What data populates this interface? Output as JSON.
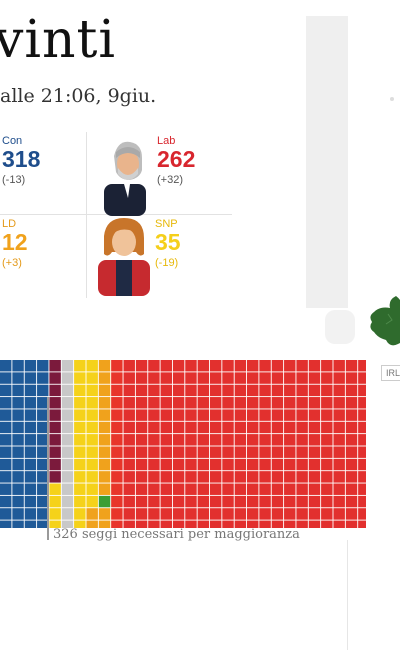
{
  "header": {
    "title": "vinti",
    "subtitle": "alle 21:06, 9giu."
  },
  "parties": [
    {
      "key": "con",
      "name": "Con",
      "seats": "318",
      "change": "(-13)",
      "color": "#1f4e8c"
    },
    {
      "key": "lab",
      "name": "Lab",
      "seats": "262",
      "change": "(+32)",
      "color": "#d8262e"
    },
    {
      "key": "ld",
      "name": "LD",
      "seats": "12",
      "change": "(+3)",
      "color": "#f0a21c"
    },
    {
      "key": "snp",
      "name": "SNP",
      "seats": "35",
      "change": "(-19)",
      "color": "#f5cf1a"
    }
  ],
  "waffle": {
    "columns": [
      {
        "count": 3,
        "color": "#1f5a98"
      },
      {
        "count": 1,
        "color": "#1f5a98"
      },
      {
        "count": 1,
        "color": "#7b1a3c"
      },
      {
        "count": 1,
        "color": "#c8c8c8"
      },
      {
        "count": 2,
        "color": "#f5d21a"
      },
      {
        "count": 1,
        "color": "#f0a21c"
      },
      {
        "count": 1,
        "color": "#e8352a"
      },
      {
        "count": 23,
        "color": "#e2302e"
      }
    ],
    "green_color": "#3a9e34",
    "majority_label": "326 seggi necessari per maggioranza"
  },
  "map": {
    "label": "IRL",
    "land_color": "#2f6b2d"
  }
}
